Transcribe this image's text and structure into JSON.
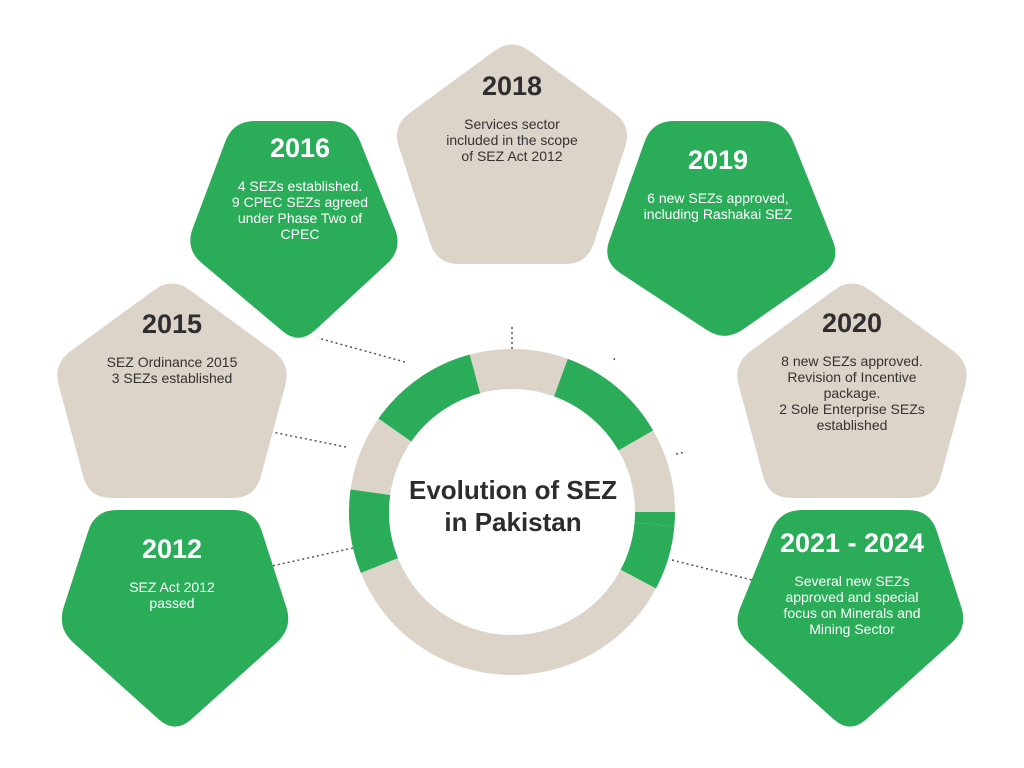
{
  "center_title": "Evolution of SEZ\nin Pakistan",
  "colors": {
    "green": "#2aac59",
    "beige": "#dcd3c9",
    "connector": "#555555"
  },
  "milestones": [
    {
      "year": "2012",
      "description": "SEZ Act 2012\npassed",
      "shade": "green"
    },
    {
      "year": "2015",
      "description": "SEZ Ordinance 2015\n3 SEZs established",
      "shade": "beige"
    },
    {
      "year": "2016",
      "description": "4 SEZs established.\n9 CPEC SEZs agreed\nunder Phase Two of\nCPEC",
      "shade": "green"
    },
    {
      "year": "2018",
      "description": "Services sector\nincluded in the scope\nof SEZ Act 2012",
      "shade": "beige"
    },
    {
      "year": "2019",
      "description": "6 new SEZs approved,\nincluding Rashakai SEZ",
      "shade": "green"
    },
    {
      "year": "2020",
      "description": "8 new SEZs approved.\nRevision of Incentive\npackage.\n2 Sole Enterprise SEZs\nestablished",
      "shade": "beige"
    },
    {
      "year": "2021 - 2024",
      "description": "Several new SEZs\napproved and special\nfocus on Minerals and\nMining Sector",
      "shade": "green"
    }
  ]
}
